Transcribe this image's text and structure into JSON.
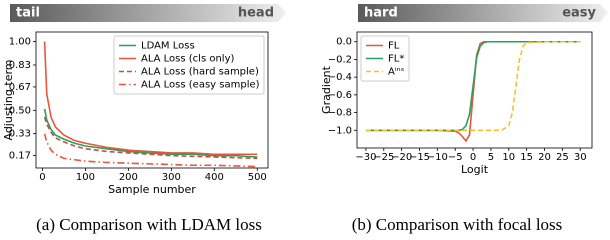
{
  "chart_data": [
    {
      "type": "line",
      "banner": {
        "left": "tail",
        "right": "head"
      },
      "xlabel": "Sample number",
      "ylabel": "Adjusting term",
      "caption": "(a)  Comparison with LDAM loss",
      "x": [
        5,
        10,
        20,
        30,
        50,
        75,
        100,
        150,
        200,
        250,
        300,
        350,
        400,
        450,
        500
      ],
      "series": [
        {
          "name": "LDAM Loss",
          "color": "#2ca05a",
          "linestyle": "solid",
          "values": [
            0.51,
            0.43,
            0.36,
            0.32,
            0.29,
            0.26,
            0.24,
            0.22,
            0.2,
            0.19,
            0.18,
            0.18,
            0.17,
            0.17,
            0.16
          ]
        },
        {
          "name": "ALA Loss (cls only)",
          "color": "#e8553a",
          "linestyle": "solid",
          "values": [
            1.0,
            0.62,
            0.45,
            0.38,
            0.32,
            0.28,
            0.26,
            0.23,
            0.21,
            0.2,
            0.19,
            0.19,
            0.18,
            0.18,
            0.18
          ]
        },
        {
          "name": "ALA Loss (hard sample)",
          "color": "#c0504d",
          "linestyle": "dashed",
          "values": [
            0.45,
            0.4,
            0.34,
            0.3,
            0.27,
            0.24,
            0.22,
            0.2,
            0.19,
            0.18,
            0.17,
            0.165,
            0.16,
            0.155,
            0.15
          ]
        },
        {
          "name": "ALA Loss (easy sample)",
          "color": "#e8553a",
          "linestyle": "dashdot",
          "values": [
            0.33,
            0.27,
            0.21,
            0.18,
            0.15,
            0.14,
            0.13,
            0.12,
            0.115,
            0.11,
            0.105,
            0.1,
            0.1,
            0.095,
            0.09
          ]
        }
      ],
      "xlim": [
        -15,
        525
      ],
      "xticks": [
        0,
        100,
        200,
        300,
        400,
        500
      ],
      "ylim": [
        0.08,
        1.07
      ],
      "yticks": [
        {
          "value": 1,
          "label": "1.00"
        },
        0.83,
        0.67,
        {
          "value": 0.5,
          "label": "0.50"
        },
        0.33,
        0.17
      ],
      "legend": "upper right",
      "grid": false
    },
    {
      "type": "line",
      "banner": {
        "left": "hard",
        "right": "easy"
      },
      "xlabel": "Logit",
      "ylabel": "Gradient",
      "caption": "(b)  Comparison with focal loss",
      "x": [
        -30,
        -20,
        -10,
        -5,
        -4,
        -3,
        -2,
        -1,
        0,
        1,
        2,
        3,
        4,
        5,
        8,
        10,
        11,
        12,
        13,
        14,
        15,
        20,
        30
      ],
      "series": [
        {
          "name": "FL",
          "color": "#e8553a",
          "linestyle": "solid",
          "values": [
            -1,
            -1,
            -1,
            -1.01,
            -1.03,
            -1.07,
            -1.12,
            -1.05,
            -0.6,
            -0.15,
            -0.02,
            0,
            0,
            0,
            0,
            0,
            0,
            0,
            0,
            0,
            0,
            0,
            0
          ]
        },
        {
          "name": "FL*",
          "color": "#2ca05a",
          "linestyle": "solid",
          "values": [
            -1,
            -1,
            -1,
            -1,
            -1,
            -0.99,
            -0.95,
            -0.82,
            -0.5,
            -0.18,
            -0.05,
            -0.01,
            0,
            0,
            0,
            0,
            0,
            0,
            0,
            0,
            0,
            0,
            0
          ]
        },
        {
          "name": "Aⁱⁿˢ",
          "color": "#f2c12e",
          "linestyle": "dashed",
          "values": [
            -1,
            -1,
            -1,
            -1,
            -1,
            -1,
            -1,
            -1,
            -1,
            -1,
            -1,
            -1,
            -1,
            -1,
            -1,
            -0.95,
            -0.8,
            -0.5,
            -0.2,
            -0.05,
            -0.01,
            0,
            0
          ]
        }
      ],
      "xlim": [
        -32.5,
        33.3
      ],
      "xticks": [
        {
          "value": -30,
          "label": "−30"
        },
        {
          "value": -25,
          "label": "−25"
        },
        {
          "value": -20,
          "label": "−20"
        },
        {
          "value": -15,
          "label": "−15"
        },
        {
          "value": -10,
          "label": "−10"
        },
        {
          "value": -5,
          "label": "−5"
        },
        0,
        5,
        10,
        15,
        20,
        25,
        30
      ],
      "ylim": [
        -1.2,
        0.11
      ],
      "yticks": [
        {
          "value": 0,
          "label": "0.0"
        },
        {
          "value": -0.2,
          "label": "−0.2"
        },
        {
          "value": -0.4,
          "label": "−0.4"
        },
        {
          "value": -0.6,
          "label": "−0.6"
        },
        {
          "value": -0.8,
          "label": "−0.8"
        },
        {
          "value": -1,
          "label": "−1.0"
        }
      ],
      "legend": "upper left",
      "grid": false
    }
  ]
}
